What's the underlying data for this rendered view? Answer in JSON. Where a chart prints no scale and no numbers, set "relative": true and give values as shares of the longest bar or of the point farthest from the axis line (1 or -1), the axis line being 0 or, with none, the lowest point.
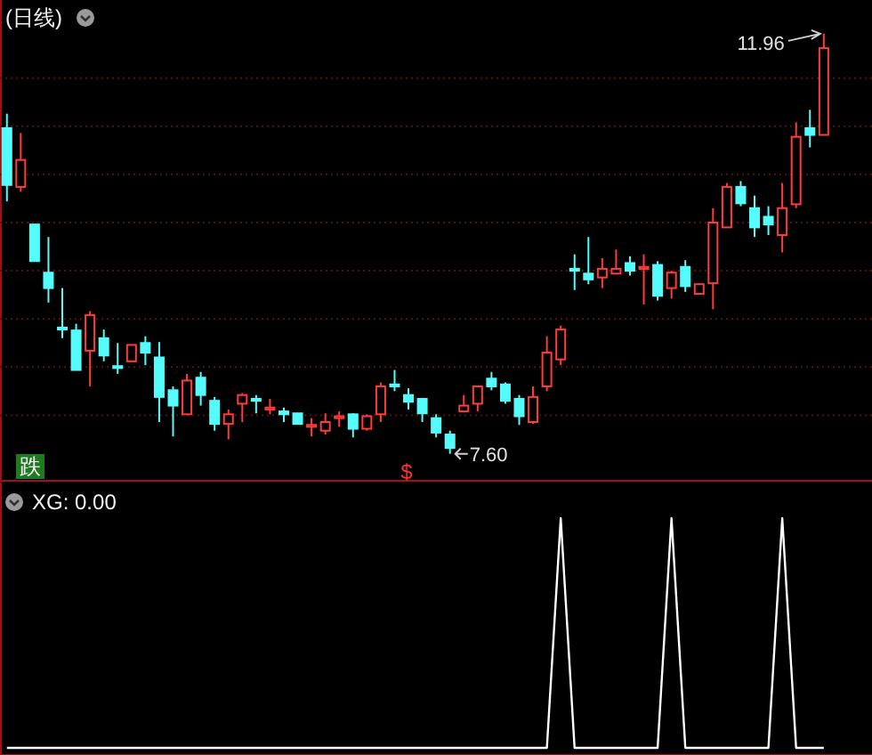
{
  "chart_data": [
    {
      "type": "candlestick",
      "title": "(日线)",
      "categories": [
        null,
        null,
        null,
        null,
        null,
        null,
        null,
        null,
        null,
        null,
        null,
        null,
        null,
        null,
        null,
        null,
        null,
        null,
        null,
        null,
        null,
        null,
        null,
        null,
        null,
        null,
        null,
        null,
        null,
        null,
        null,
        null,
        null,
        null,
        null,
        null,
        null,
        null,
        null,
        null,
        null,
        null,
        null,
        null,
        null,
        null,
        null,
        null,
        null,
        null,
        null,
        null,
        null,
        null,
        null,
        null,
        null,
        null,
        null,
        null
      ],
      "ohlc": [
        [
          10.98,
          11.13,
          10.22,
          10.39
        ],
        [
          10.37,
          10.93,
          10.32,
          10.65
        ],
        [
          9.98,
          9.98,
          9.6,
          9.6
        ],
        [
          9.48,
          9.85,
          9.17,
          9.32
        ],
        [
          8.91,
          9.32,
          8.8,
          8.89
        ],
        [
          8.88,
          8.95,
          8.47,
          8.47
        ],
        [
          8.67,
          9.08,
          8.3,
          9.04
        ],
        [
          8.8,
          8.89,
          8.56,
          8.62
        ],
        [
          8.51,
          8.75,
          8.43,
          8.49
        ],
        [
          8.56,
          8.73,
          8.56,
          8.73
        ],
        [
          8.75,
          8.82,
          8.52,
          8.65
        ],
        [
          8.6,
          8.76,
          7.93,
          8.19
        ],
        [
          8.26,
          8.3,
          7.78,
          8.1
        ],
        [
          8.01,
          8.43,
          8.01,
          8.36
        ],
        [
          8.39,
          8.45,
          8.1,
          8.21
        ],
        [
          8.15,
          8.19,
          7.84,
          7.91
        ],
        [
          7.91,
          8.06,
          7.75,
          8.01
        ],
        [
          8.12,
          8.23,
          7.93,
          8.21
        ],
        [
          8.17,
          8.21,
          8.02,
          8.15
        ],
        [
          8.06,
          8.17,
          8.01,
          8.08
        ],
        [
          8.04,
          8.08,
          7.93,
          8.01
        ],
        [
          8.02,
          8.02,
          7.91,
          7.91
        ],
        [
          7.88,
          7.97,
          7.78,
          7.9
        ],
        [
          7.84,
          8.02,
          7.8,
          7.93
        ],
        [
          7.97,
          8.04,
          7.88,
          7.99
        ],
        [
          8.01,
          8.02,
          7.77,
          7.86
        ],
        [
          7.86,
          8.01,
          7.84,
          7.99
        ],
        [
          8.01,
          8.34,
          7.93,
          8.3
        ],
        [
          8.32,
          8.47,
          8.25,
          8.3
        ],
        [
          8.21,
          8.28,
          8.06,
          8.14
        ],
        [
          8.17,
          8.17,
          7.93,
          8.02
        ],
        [
          7.97,
          8.01,
          7.77,
          7.82
        ],
        [
          7.8,
          7.84,
          7.6,
          7.66
        ],
        [
          8.04,
          8.21,
          8.04,
          8.1
        ],
        [
          8.12,
          8.3,
          8.04,
          8.3
        ],
        [
          8.38,
          8.45,
          8.26,
          8.3
        ],
        [
          8.32,
          8.34,
          8.12,
          8.15
        ],
        [
          8.17,
          8.21,
          7.9,
          7.99
        ],
        [
          7.93,
          8.3,
          7.91,
          8.19
        ],
        [
          8.3,
          8.82,
          8.25,
          8.65
        ],
        [
          8.58,
          8.93,
          8.52,
          8.89
        ],
        [
          9.52,
          9.67,
          9.3,
          9.5
        ],
        [
          9.47,
          9.85,
          9.36,
          9.41
        ],
        [
          9.43,
          9.63,
          9.32,
          9.52
        ],
        [
          9.47,
          9.72,
          9.47,
          9.52
        ],
        [
          9.58,
          9.65,
          9.45,
          9.5
        ],
        [
          9.52,
          9.67,
          9.15,
          9.54
        ],
        [
          9.56,
          9.6,
          9.19,
          9.24
        ],
        [
          9.32,
          9.5,
          9.21,
          9.48
        ],
        [
          9.54,
          9.61,
          9.28,
          9.34
        ],
        [
          9.26,
          9.37,
          9.26,
          9.36
        ],
        [
          9.37,
          10.15,
          9.1,
          10.0
        ],
        [
          9.95,
          10.41,
          9.95,
          10.37
        ],
        [
          10.37,
          10.43,
          10.17,
          10.2
        ],
        [
          10.15,
          10.28,
          9.85,
          9.95
        ],
        [
          10.06,
          10.17,
          9.87,
          9.98
        ],
        [
          9.87,
          10.41,
          9.69,
          10.15
        ],
        [
          10.19,
          11.04,
          10.15,
          10.89
        ],
        [
          10.98,
          11.17,
          10.78,
          10.91
        ],
        [
          10.91,
          11.96,
          10.91,
          11.81
        ]
      ],
      "ylim": [
        7.32,
        12.31
      ],
      "yticks": [
        {
          "value": 8,
          "label": null
        },
        {
          "value": 8.5,
          "label": null
        },
        {
          "value": 9,
          "label": null
        },
        {
          "value": 9.5,
          "label": null
        },
        {
          "value": 10,
          "label": null
        },
        {
          "value": 10.5,
          "label": null
        },
        {
          "value": 11,
          "label": null
        },
        {
          "value": 11.5,
          "label": null
        }
      ],
      "grid": "y",
      "annotations": [
        "11.96",
        "7.60",
        "跌",
        "$"
      ]
    },
    {
      "type": "line",
      "title": "XG: 0.00",
      "relative": true,
      "categories": [
        null,
        null,
        null,
        null,
        null,
        null,
        null,
        null,
        null,
        null,
        null,
        null,
        null,
        null,
        null,
        null,
        null,
        null,
        null,
        null,
        null,
        null,
        null,
        null,
        null,
        null,
        null,
        null,
        null,
        null,
        null,
        null,
        null,
        null,
        null,
        null,
        null,
        null,
        null,
        null,
        null,
        null,
        null,
        null,
        null,
        null,
        null,
        null,
        null,
        null,
        null,
        null,
        null,
        null,
        null,
        null,
        null,
        null,
        null,
        null
      ],
      "series": [
        {
          "color": "#ffffff",
          "values": [
            0,
            0,
            0,
            0,
            0,
            0,
            0,
            0,
            0,
            0,
            0,
            0,
            0,
            0,
            0,
            0,
            0,
            0,
            0,
            0,
            0,
            0,
            0,
            0,
            0,
            0,
            0,
            0,
            0,
            0,
            0,
            0,
            0,
            0,
            0,
            0,
            0,
            0,
            0,
            0,
            1,
            0,
            0,
            0,
            0,
            0,
            0,
            0,
            1,
            0,
            0,
            0,
            0,
            0,
            0,
            0,
            1,
            0,
            0,
            0
          ]
        }
      ]
    }
  ]
}
